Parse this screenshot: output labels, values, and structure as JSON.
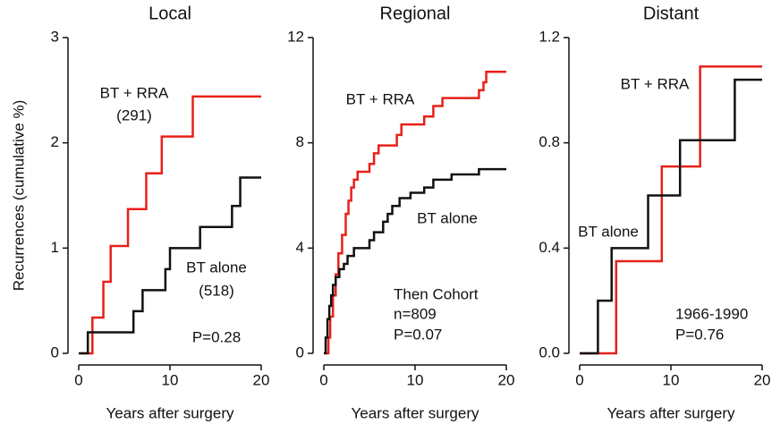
{
  "chart_data": [
    {
      "type": "step",
      "title": "Local",
      "y_label": "Recurrences (cumulative %)",
      "x_label": "Years after surgery",
      "xlim": [
        0,
        20
      ],
      "xticks": [
        0,
        10,
        20
      ],
      "ylim": [
        0,
        3
      ],
      "yticks": [
        0,
        1,
        2,
        3
      ],
      "series": [
        {
          "name": "BT + RRA",
          "color": "#e8201a",
          "x": [
            0.2,
            1.5,
            2.7,
            3.5,
            5.4,
            7.4,
            9.1,
            12.5,
            20
          ],
          "values": [
            0,
            0.34,
            0.68,
            1.02,
            1.37,
            1.71,
            2.06,
            2.44,
            2.44
          ]
        },
        {
          "name": "BT alone",
          "color": "#111111",
          "x": [
            0,
            1,
            6,
            7,
            9.5,
            10,
            13.3,
            16.8,
            17.7,
            20
          ],
          "values": [
            0,
            0.2,
            0.4,
            0.6,
            0.8,
            1.0,
            1.2,
            1.4,
            1.67,
            1.67
          ]
        }
      ],
      "annotations": [
        "BT + RRA",
        "(291)",
        "BT alone",
        "(518)",
        "P=0.28"
      ]
    },
    {
      "type": "step",
      "title": "Regional",
      "x_label": "Years after surgery",
      "xlim": [
        0,
        20
      ],
      "xticks": [
        0,
        10,
        20
      ],
      "ylim": [
        0,
        12
      ],
      "yticks": [
        0,
        4,
        8,
        12
      ],
      "series": [
        {
          "name": "BT + RRA",
          "color": "#e8201a",
          "x": [
            0.3,
            0.5,
            0.7,
            1,
            1.3,
            1.6,
            2,
            2.4,
            2.7,
            3,
            3.3,
            3.7,
            5,
            5.5,
            6,
            8,
            8.5,
            11,
            12,
            13,
            17,
            17.5,
            17.8,
            20
          ],
          "values": [
            0,
            0.6,
            1.4,
            2.2,
            3.0,
            3.8,
            4.5,
            5.3,
            5.8,
            6.3,
            6.6,
            6.9,
            7.2,
            7.6,
            7.9,
            8.3,
            8.7,
            9.0,
            9.4,
            9.7,
            10.0,
            10.3,
            10.7,
            10.7
          ]
        },
        {
          "name": "BT alone",
          "color": "#111111",
          "x": [
            0,
            0.2,
            0.4,
            0.6,
            0.8,
            1,
            1.3,
            1.7,
            2.2,
            2.6,
            3.3,
            5,
            5.5,
            6.5,
            7,
            7.5,
            8.3,
            9.5,
            11,
            12,
            14,
            17,
            20
          ],
          "values": [
            0,
            0.6,
            1.3,
            1.8,
            2.2,
            2.6,
            2.9,
            3.2,
            3.4,
            3.7,
            4.0,
            4.3,
            4.6,
            5.0,
            5.3,
            5.6,
            5.9,
            6.1,
            6.3,
            6.6,
            6.8,
            7.0,
            7.0
          ]
        }
      ],
      "annotations": [
        "BT + RRA",
        "BT alone",
        "Then Cohort",
        "n=809",
        "P=0.07"
      ]
    },
    {
      "type": "step",
      "title": "Distant",
      "x_label": "Years after surgery",
      "xlim": [
        0,
        20
      ],
      "xticks": [
        0,
        10,
        20
      ],
      "ylim": [
        0,
        1.2
      ],
      "yticks": [
        {
          "value": 0,
          "label": "0.0"
        },
        0.4,
        0.8,
        1.2
      ],
      "series": [
        {
          "name": "BT + RRA",
          "color": "#e8201a",
          "x": [
            0,
            4,
            9,
            13.2,
            20
          ],
          "values": [
            0,
            0.35,
            0.71,
            1.09,
            1.09
          ]
        },
        {
          "name": "BT alone",
          "color": "#111111",
          "x": [
            0,
            2,
            3.5,
            7.5,
            11,
            17,
            20
          ],
          "values": [
            0,
            0.2,
            0.4,
            0.6,
            0.81,
            1.04,
            1.04
          ]
        }
      ],
      "annotations": [
        "BT + RRA",
        "BT alone",
        "1966-1990",
        "P=0.76"
      ]
    }
  ]
}
